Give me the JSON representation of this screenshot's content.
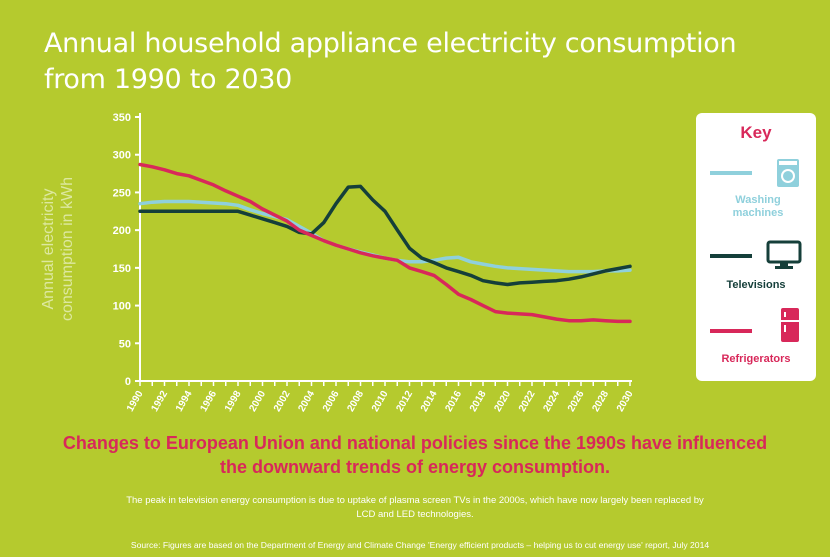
{
  "header": {
    "title": "Annual household appliance electricity consumption from 1990 to 2030"
  },
  "legend": {
    "title": "Key",
    "items": [
      {
        "label": "Washing machines",
        "color": "#8fd0dc",
        "icon": "washing-machine-icon"
      },
      {
        "label": "Televisions",
        "color": "#153f3a",
        "icon": "television-icon"
      },
      {
        "label": "Refrigerators",
        "color": "#d8285a",
        "icon": "refrigerator-icon"
      }
    ]
  },
  "headline": "Changes to European Union and national policies since the 1990s have influenced the downward trends of energy consumption.",
  "note": "The peak in television energy consumption is due to uptake of plasma screen TVs in the 2000s, which have now largely been replaced by LCD and LED technologies.",
  "source": "Source: Figures are based on the Department of Energy and Climate Change 'Energy efficient products – helping us to cut energy use' report, July 2014",
  "colors": {
    "background": "#b5ca2e",
    "axis": "#ffffff",
    "accent": "#d8285a"
  },
  "chart_data": {
    "type": "line",
    "title": "Annual household appliance electricity consumption from 1990 to 2030",
    "ylabel": "Annual electricity consumption in kWh",
    "xlabel": "",
    "ylim": [
      0,
      350
    ],
    "yticks": [
      0,
      50,
      100,
      150,
      200,
      250,
      300,
      350
    ],
    "xlim": [
      1990,
      2030
    ],
    "xticks": [
      1990,
      1992,
      1994,
      1996,
      1998,
      2000,
      2002,
      2004,
      2006,
      2008,
      2010,
      2012,
      2014,
      2016,
      2018,
      2020,
      2022,
      2024,
      2026,
      2028,
      2030
    ],
    "x": [
      1990,
      1991,
      1992,
      1993,
      1994,
      1995,
      1996,
      1997,
      1998,
      1999,
      2000,
      2001,
      2002,
      2003,
      2004,
      2005,
      2006,
      2007,
      2008,
      2009,
      2010,
      2011,
      2012,
      2013,
      2014,
      2015,
      2016,
      2017,
      2018,
      2019,
      2020,
      2021,
      2022,
      2023,
      2024,
      2025,
      2026,
      2027,
      2028,
      2029,
      2030
    ],
    "series": [
      {
        "name": "Washing machines",
        "color": "#8fd0dc",
        "values": [
          235,
          237,
          238,
          238,
          238,
          237,
          236,
          235,
          233,
          227,
          222,
          218,
          214,
          205,
          196,
          186,
          180,
          175,
          171,
          167,
          163,
          160,
          158,
          158,
          160,
          163,
          164,
          158,
          155,
          152,
          150,
          149,
          148,
          147,
          146,
          145,
          145,
          145,
          146,
          146,
          147
        ]
      },
      {
        "name": "Televisions",
        "color": "#153f3a",
        "values": [
          225,
          225,
          225,
          225,
          225,
          225,
          225,
          225,
          225,
          220,
          215,
          210,
          205,
          197,
          195,
          210,
          235,
          257,
          258,
          240,
          225,
          200,
          176,
          163,
          157,
          150,
          145,
          140,
          133,
          130,
          128,
          130,
          131,
          132,
          133,
          135,
          138,
          142,
          146,
          149,
          152
        ]
      },
      {
        "name": "Refrigerators",
        "color": "#d8285a",
        "values": [
          287,
          284,
          280,
          275,
          272,
          266,
          260,
          252,
          245,
          238,
          228,
          220,
          212,
          200,
          193,
          186,
          180,
          175,
          170,
          166,
          163,
          160,
          150,
          145,
          140,
          128,
          115,
          108,
          100,
          92,
          90,
          89,
          88,
          85,
          82,
          80,
          80,
          81,
          80,
          79,
          79
        ]
      }
    ]
  }
}
